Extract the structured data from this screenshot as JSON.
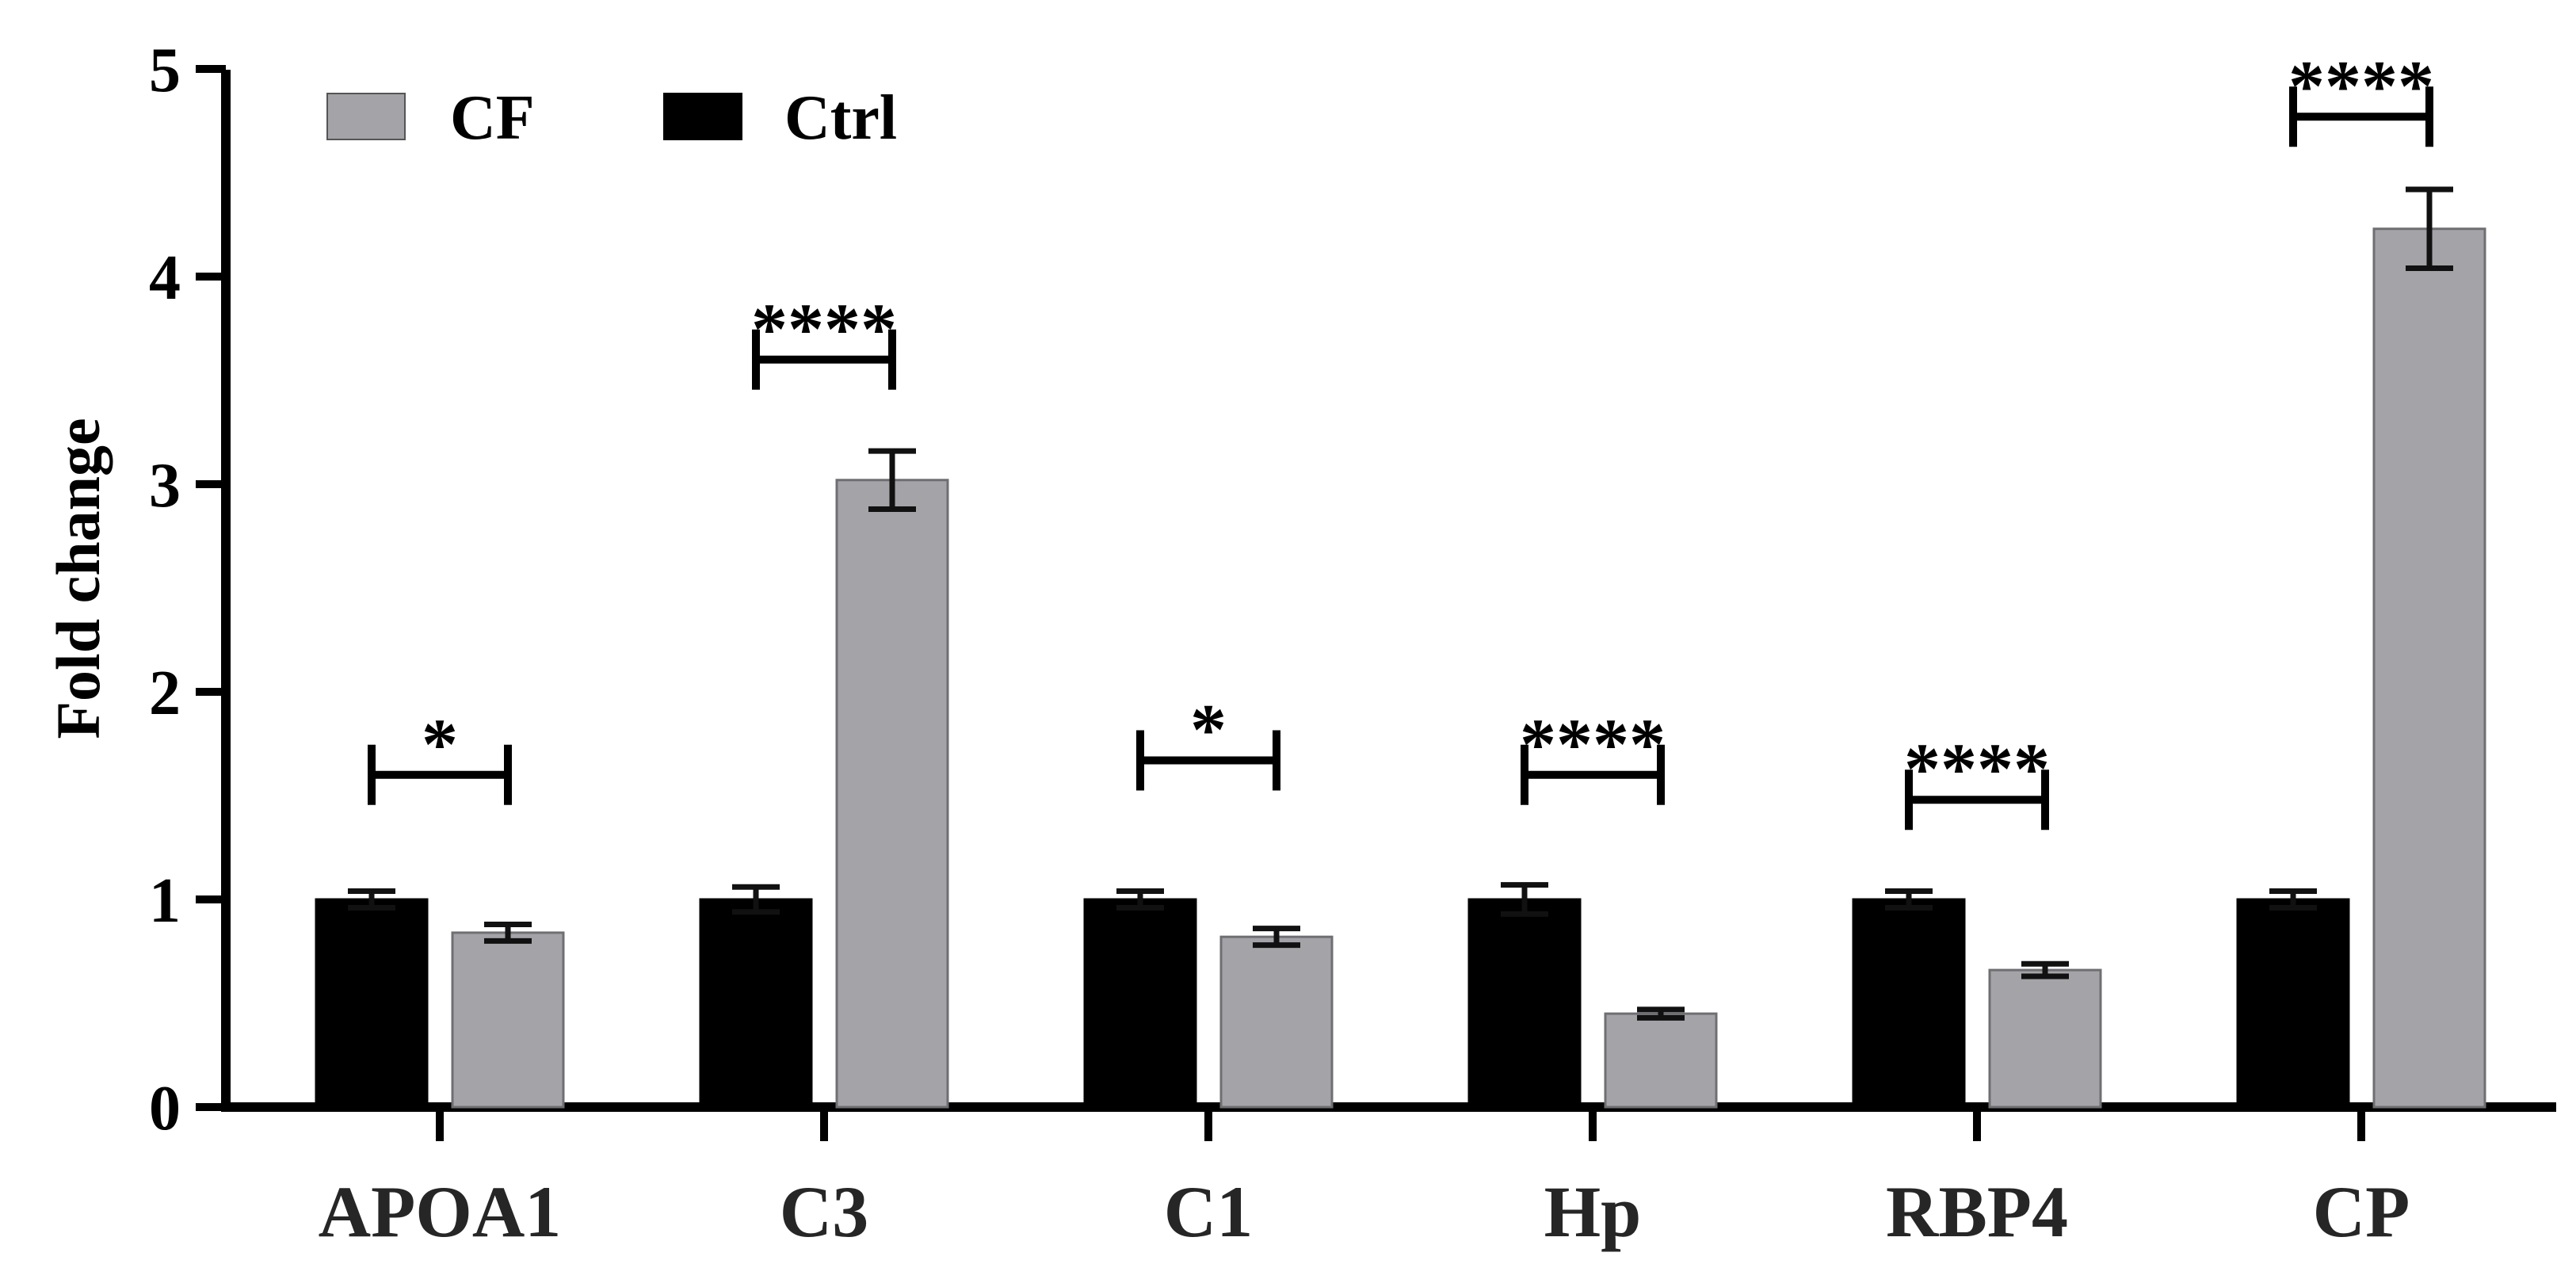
{
  "chart_data": {
    "type": "bar",
    "ylabel": "Fold change",
    "xlabel": "",
    "ylim": [
      0,
      5
    ],
    "yticks": [
      "0",
      "1",
      "2",
      "3",
      "4",
      "5"
    ],
    "grid": false,
    "legend_position": "top-left",
    "categories": [
      "APOA1",
      "C3",
      "C1",
      "Hp",
      "RBP4",
      "CP"
    ],
    "series": [
      {
        "name": "Ctrl",
        "color": "#000000",
        "values": [
          1.0,
          1.0,
          1.0,
          1.0,
          1.0,
          1.0
        ],
        "errors": [
          0.04,
          0.06,
          0.04,
          0.07,
          0.04,
          0.04
        ]
      },
      {
        "name": "CF",
        "color": "#a3a3a8",
        "values": [
          0.84,
          3.02,
          0.82,
          0.45,
          0.66,
          4.23
        ],
        "errors": [
          0.04,
          0.14,
          0.04,
          0.02,
          0.03,
          0.19
        ]
      }
    ],
    "legend": [
      {
        "name": "CF",
        "color": "#a3a3a8"
      },
      {
        "name": "Ctrl",
        "color": "#000000"
      }
    ],
    "significance": [
      {
        "category": "APOA1",
        "label": "*",
        "bracket_y": 1.6
      },
      {
        "category": "C3",
        "label": "****",
        "bracket_y": 3.6
      },
      {
        "category": "C1",
        "label": "*",
        "bracket_y": 1.67
      },
      {
        "category": "Hp",
        "label": "****",
        "bracket_y": 1.6
      },
      {
        "category": "RBP4",
        "label": "****",
        "bracket_y": 1.48
      },
      {
        "category": "CP",
        "label": "****",
        "bracket_y": 4.77
      }
    ]
  }
}
